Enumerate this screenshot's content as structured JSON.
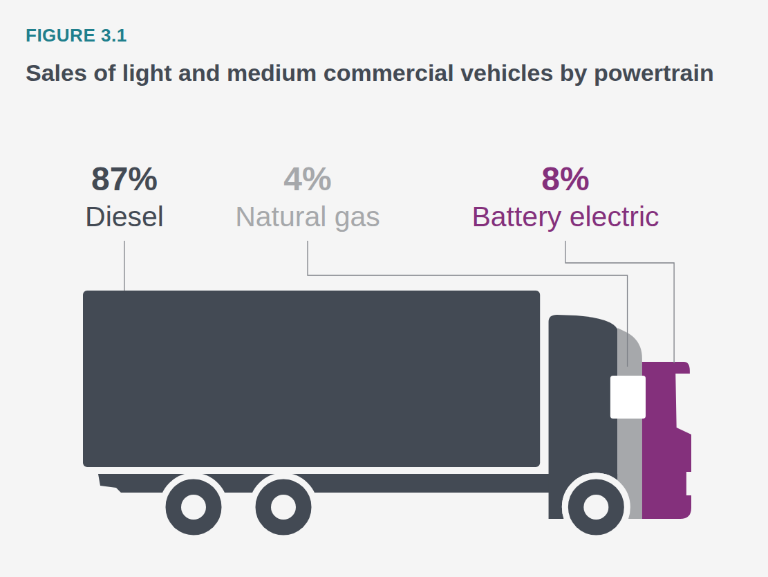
{
  "chart_data": {
    "type": "bar",
    "orientation": "horizontal",
    "stacked": true,
    "figure_number": "FIGURE 3.1",
    "title": "Sales of light and medium commercial vehicles by powertrain",
    "categories": [
      null
    ],
    "series": [
      {
        "name": "Diesel",
        "color": "#434a54",
        "values": [
          87
        ],
        "value_labels": [
          "87%"
        ]
      },
      {
        "name": "Natural gas",
        "color": "#a6a8ab",
        "values": [
          4
        ],
        "value_labels": [
          "4%"
        ]
      },
      {
        "name": "Battery electric",
        "color": "#84307c",
        "values": [
          8
        ],
        "value_labels": [
          "8%"
        ]
      }
    ],
    "data_labels": true,
    "tick_labels": false
  }
}
